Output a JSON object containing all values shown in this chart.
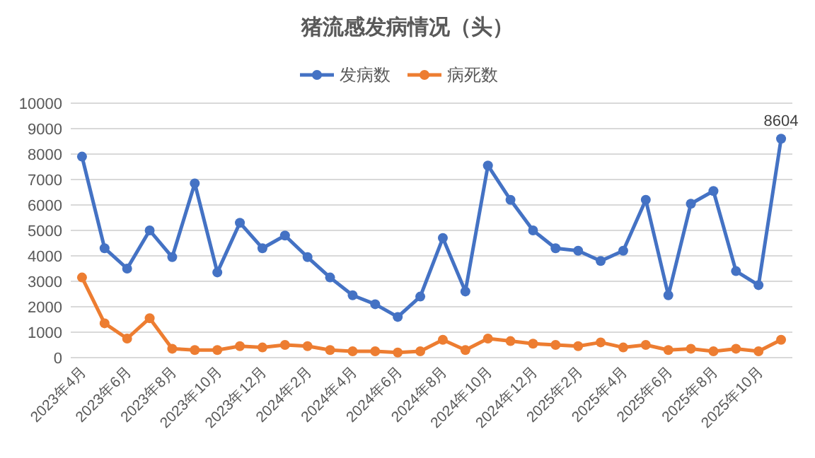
{
  "chart_data": {
    "type": "line",
    "title": "猪流感发病情况（头）",
    "categories": [
      "2023年4月",
      null,
      "2023年6月",
      null,
      "2023年8月",
      null,
      "2023年10月",
      null,
      "2023年12月",
      null,
      "2024年2月",
      null,
      "2024年4月",
      null,
      "2024年6月",
      null,
      "2024年8月",
      null,
      "2024年10月",
      null,
      "2024年12月",
      null,
      "2025年2月",
      null,
      "2025年4月",
      null,
      "2025年6月",
      null,
      "2025年8月",
      null,
      "2025年10月",
      null
    ],
    "series": [
      {
        "name": "发病数",
        "color": "#4472c4",
        "values": [
          7900,
          4300,
          3500,
          5000,
          3950,
          6850,
          3350,
          5300,
          4300,
          4800,
          3950,
          3150,
          2450,
          2100,
          1600,
          2400,
          4700,
          2600,
          7550,
          6200,
          5000,
          4300,
          4200,
          3800,
          4200,
          6200,
          2450,
          6050,
          6550,
          3400,
          2850,
          8604
        ],
        "value_labels": [
          null,
          null,
          null,
          null,
          null,
          null,
          null,
          null,
          null,
          null,
          null,
          null,
          null,
          null,
          null,
          null,
          null,
          null,
          null,
          null,
          null,
          null,
          null,
          null,
          null,
          null,
          null,
          null,
          null,
          null,
          null,
          "8604"
        ]
      },
      {
        "name": "病死数",
        "color": "#ed7d31",
        "values": [
          3150,
          1350,
          750,
          1550,
          350,
          300,
          300,
          450,
          400,
          500,
          450,
          300,
          250,
          250,
          200,
          250,
          700,
          300,
          750,
          650,
          550,
          500,
          450,
          600,
          400,
          500,
          300,
          350,
          250,
          350,
          250,
          700
        ]
      }
    ],
    "ylim": [
      0,
      10000
    ],
    "yticks": [
      0,
      1000,
      2000,
      3000,
      4000,
      5000,
      6000,
      7000,
      8000,
      9000,
      10000
    ],
    "grid": "y",
    "legend": "top",
    "marker": "circle",
    "line_style": "solid"
  }
}
